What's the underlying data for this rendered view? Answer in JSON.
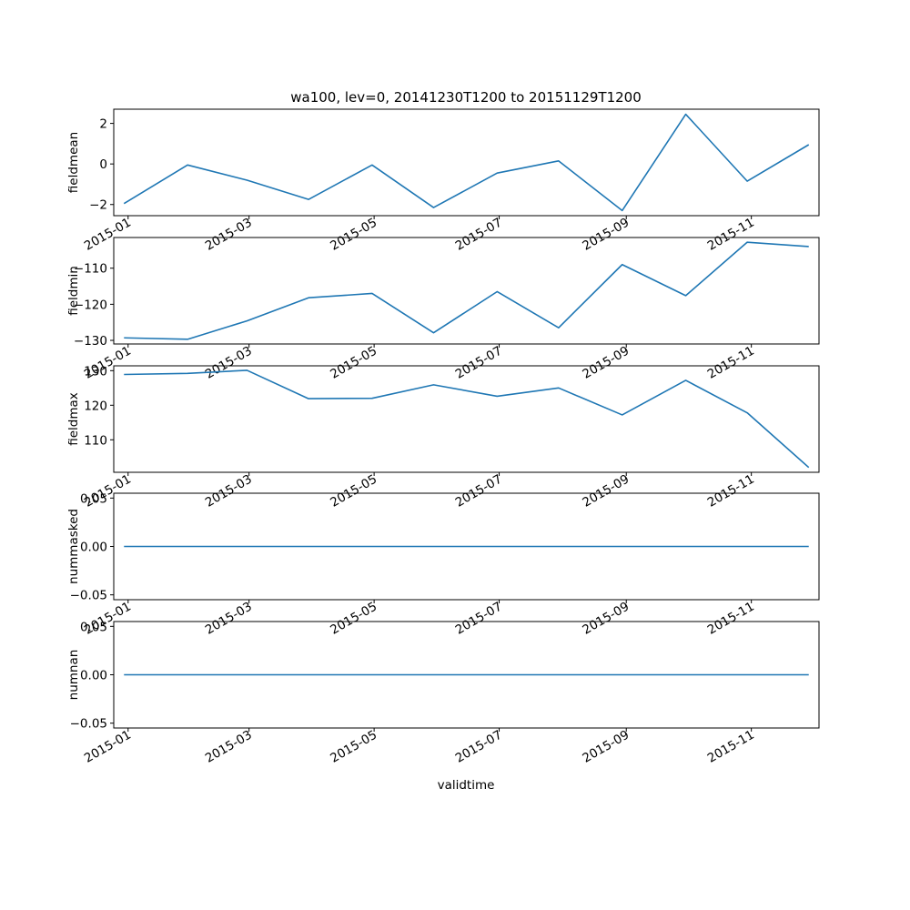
{
  "figure": {
    "title": "wa100, lev=0, 20141230T1200 to 20151129T1200",
    "xlabel": "validtime"
  },
  "colors": {
    "line": "#1f77b4",
    "axes": "#000000",
    "background": "#ffffff"
  },
  "chart_data": [
    {
      "type": "line",
      "ylabel": "fieldmean",
      "x": [
        "2014-12-30",
        "2015-01-30",
        "2015-02-28",
        "2015-03-30",
        "2015-04-30",
        "2015-05-30",
        "2015-06-30",
        "2015-07-30",
        "2015-08-30",
        "2015-09-30",
        "2015-10-30",
        "2015-11-29"
      ],
      "values": [
        -1.95,
        -0.05,
        -0.8,
        -1.75,
        -0.05,
        -2.15,
        -0.45,
        0.15,
        -2.3,
        2.45,
        -0.85,
        0.95
      ],
      "ylim": [
        -2.55,
        2.7
      ],
      "yticks": [
        -2,
        0,
        2
      ],
      "ytick_labels": [
        "−2",
        "0",
        "2"
      ],
      "xtick_labels_visible": [
        "2015-01",
        "2015-03",
        "2015-05",
        "2015-07",
        "2015-09",
        "2015-11"
      ],
      "grid": false
    },
    {
      "type": "line",
      "ylabel": "fieldmin",
      "x": [
        "2014-12-30",
        "2015-01-30",
        "2015-02-28",
        "2015-03-30",
        "2015-04-30",
        "2015-05-30",
        "2015-06-30",
        "2015-07-30",
        "2015-08-30",
        "2015-09-30",
        "2015-10-30",
        "2015-11-29"
      ],
      "values": [
        -129.3,
        -129.7,
        -124.6,
        -118.2,
        -117.0,
        -127.9,
        -116.5,
        -126.5,
        -109.0,
        -117.6,
        -102.8,
        -104.0
      ],
      "ylim": [
        -131.0,
        -101.5
      ],
      "yticks": [
        -130,
        -120,
        -110
      ],
      "ytick_labels": [
        "−130",
        "−120",
        "−110"
      ],
      "xtick_labels_visible": [
        "2015-01",
        "2015-03",
        "2015-05",
        "2015-07",
        "2015-09",
        "2015-11"
      ],
      "grid": false
    },
    {
      "type": "line",
      "ylabel": "fieldmax",
      "x": [
        "2014-12-30",
        "2015-01-30",
        "2015-02-28",
        "2015-03-30",
        "2015-04-30",
        "2015-05-30",
        "2015-06-30",
        "2015-07-30",
        "2015-08-30",
        "2015-09-30",
        "2015-10-30",
        "2015-11-29"
      ],
      "values": [
        128.9,
        129.2,
        130.1,
        121.9,
        122.0,
        125.9,
        122.6,
        125.0,
        117.2,
        127.2,
        117.8,
        102.0
      ],
      "ylim": [
        100.6,
        131.4
      ],
      "yticks": [
        110,
        120,
        130
      ],
      "ytick_labels": [
        "110",
        "120",
        "130"
      ],
      "xtick_labels_visible": [
        "2015-01",
        "2015-03",
        "2015-05",
        "2015-07",
        "2015-09",
        "2015-11"
      ],
      "grid": false
    },
    {
      "type": "line",
      "ylabel": "nummasked",
      "x": [
        "2014-12-30",
        "2015-01-30",
        "2015-02-28",
        "2015-03-30",
        "2015-04-30",
        "2015-05-30",
        "2015-06-30",
        "2015-07-30",
        "2015-08-30",
        "2015-09-30",
        "2015-10-30",
        "2015-11-29"
      ],
      "values": [
        0,
        0,
        0,
        0,
        0,
        0,
        0,
        0,
        0,
        0,
        0,
        0
      ],
      "ylim": [
        -0.055,
        0.055
      ],
      "yticks": [
        -0.05,
        0.0,
        0.05
      ],
      "ytick_labels": [
        "−0.05",
        "0.00",
        "0.05"
      ],
      "xtick_labels_visible": [
        "2015-01",
        "2015-03",
        "2015-05",
        "2015-07",
        "2015-09",
        "2015-11"
      ],
      "grid": false
    },
    {
      "type": "line",
      "ylabel": "numnan",
      "x": [
        "2014-12-30",
        "2015-01-30",
        "2015-02-28",
        "2015-03-30",
        "2015-04-30",
        "2015-05-30",
        "2015-06-30",
        "2015-07-30",
        "2015-08-30",
        "2015-09-30",
        "2015-10-30",
        "2015-11-29"
      ],
      "values": [
        0,
        0,
        0,
        0,
        0,
        0,
        0,
        0,
        0,
        0,
        0,
        0
      ],
      "ylim": [
        -0.055,
        0.055
      ],
      "yticks": [
        -0.05,
        0.0,
        0.05
      ],
      "ytick_labels": [
        "−0.05",
        "0.00",
        "0.05"
      ],
      "xtick_labels_visible": [
        "2015-01",
        "2015-03",
        "2015-05",
        "2015-07",
        "2015-09",
        "2015-11"
      ],
      "grid": false
    }
  ],
  "xaxis": {
    "ticks": [
      "2015-01-01",
      "2015-03-01",
      "2015-05-01",
      "2015-07-01",
      "2015-09-01",
      "2015-11-01"
    ],
    "tick_labels": [
      "2015-01",
      "2015-03",
      "2015-05",
      "2015-07",
      "2015-09",
      "2015-11"
    ],
    "range": [
      "2014-12-25",
      "2015-12-04"
    ]
  }
}
